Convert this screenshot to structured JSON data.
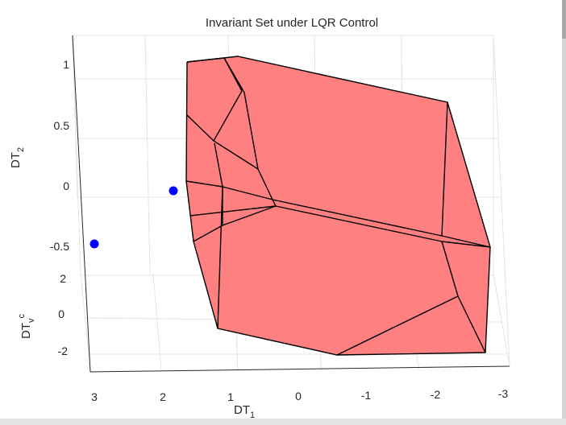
{
  "chart_data": {
    "type": "3d-polytope",
    "title": "Invariant Set under LQR Control",
    "axes": {
      "x": {
        "label": "DT",
        "label_sub": "1",
        "ticks": [
          "3",
          "2",
          "1",
          "0",
          "-1",
          "-2",
          "-3"
        ],
        "range": [
          -3,
          3
        ]
      },
      "y": {
        "label": "DT",
        "label_sub": "2",
        "ticks": [
          "1",
          "0.5",
          "0",
          "-0.5"
        ],
        "range": [
          -0.5,
          1
        ]
      },
      "z": {
        "label": "DT",
        "label_sub": "v",
        "label_sup": "c",
        "ticks": [
          "2",
          "0",
          "-2"
        ],
        "range": [
          -2,
          2
        ]
      }
    },
    "grid": true,
    "series": [
      {
        "kind": "polytope",
        "color": "#ff8080",
        "edge_color": "#000000"
      },
      {
        "kind": "points",
        "color": "#0000ff",
        "count": 2
      }
    ]
  }
}
